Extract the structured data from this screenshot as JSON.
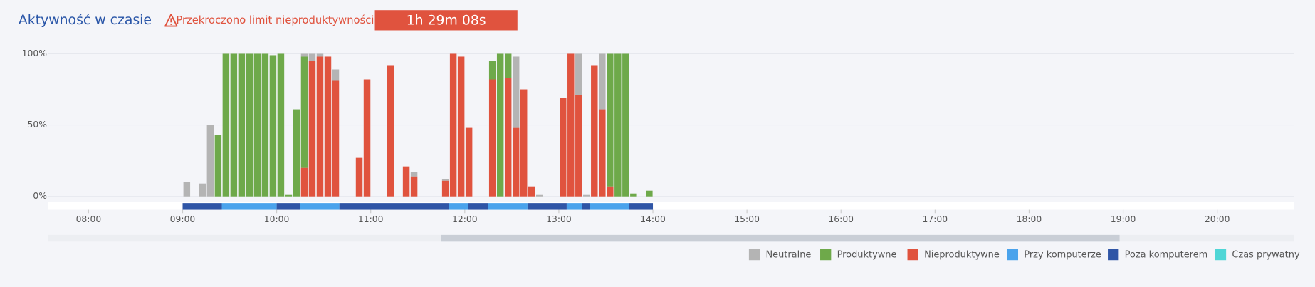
{
  "chart_data": {
    "type": "bar",
    "title": "Aktywność w czasie",
    "warning": "Przekroczono limit nieproduktywności!",
    "badge": "1h 29m 08s",
    "stacked": true,
    "bar_minutes": 5,
    "x": [
      540,
      550,
      555,
      560,
      565,
      570,
      575,
      580,
      585,
      590,
      595,
      600,
      605,
      610,
      615,
      620,
      625,
      630,
      635,
      650,
      655,
      670,
      680,
      685,
      705,
      710,
      715,
      720,
      735,
      740,
      745,
      750,
      755,
      760,
      765,
      780,
      785,
      790,
      795,
      800,
      805,
      810,
      815,
      820,
      825,
      835
    ],
    "series": [
      {
        "name": "Nieproduktywne",
        "color": "#e0533e",
        "values": [
          0,
          0,
          0,
          0,
          0,
          0,
          0,
          0,
          0,
          0,
          0,
          0,
          0,
          0,
          20,
          95,
          98,
          98,
          81,
          27,
          82,
          92,
          21,
          14,
          11,
          100,
          98,
          48,
          82,
          0,
          83,
          48,
          75,
          7,
          0,
          69,
          100,
          71,
          0,
          92,
          61,
          7,
          0,
          0,
          0,
          0
        ]
      },
      {
        "name": "Produktywne",
        "color": "#6ea94a",
        "values": [
          0,
          0,
          0,
          43,
          100,
          100,
          100,
          100,
          100,
          100,
          99,
          100,
          1,
          61,
          78,
          0,
          0,
          0,
          0,
          0,
          0,
          0,
          0,
          0,
          0,
          0,
          0,
          0,
          13,
          100,
          17,
          0,
          0,
          0,
          0,
          0,
          0,
          0,
          0,
          0,
          0,
          93,
          100,
          100,
          2,
          4
        ]
      },
      {
        "name": "Neutralne",
        "color": "#b4b4b4",
        "values": [
          10,
          9,
          50,
          0,
          0,
          0,
          0,
          0,
          0,
          0,
          0,
          0,
          0,
          0,
          2,
          5,
          2,
          0,
          8,
          0,
          0,
          0,
          0,
          3,
          1,
          0,
          0,
          0,
          0,
          0,
          0,
          50,
          0,
          0,
          1,
          0,
          0,
          29,
          1,
          0,
          39,
          0,
          0,
          0,
          0,
          0
        ]
      }
    ],
    "timeline": [
      {
        "name": "Przy komputerze",
        "color": "#4aa3ec",
        "ranges": [
          [
            565,
            600
          ],
          [
            615,
            640
          ],
          [
            710,
            722
          ],
          [
            735,
            760
          ],
          [
            785,
            795
          ],
          [
            800,
            825
          ]
        ]
      },
      {
        "name": "Poza komputerem",
        "color": "#2f55a6",
        "ranges": [
          [
            540,
            565
          ],
          [
            600,
            615
          ],
          [
            640,
            710
          ],
          [
            722,
            735
          ],
          [
            760,
            785
          ],
          [
            795,
            800
          ],
          [
            825,
            840
          ]
        ]
      },
      {
        "name": "Czas prywatny",
        "color": "#4fd6d6",
        "ranges": []
      }
    ],
    "xlim": [
      454,
      1249
    ],
    "xticks": [
      {
        "value": 480,
        "label": "08:00"
      },
      {
        "value": 540,
        "label": "09:00"
      },
      {
        "value": 600,
        "label": "10:00"
      },
      {
        "value": 660,
        "label": "11:00"
      },
      {
        "value": 720,
        "label": "12:00"
      },
      {
        "value": 780,
        "label": "13:00"
      },
      {
        "value": 840,
        "label": "14:00"
      },
      {
        "value": 900,
        "label": "15:00"
      },
      {
        "value": 960,
        "label": "16:00"
      },
      {
        "value": 1020,
        "label": "17:00"
      },
      {
        "value": 1080,
        "label": "18:00"
      },
      {
        "value": 1140,
        "label": "19:00"
      },
      {
        "value": 1200,
        "label": "20:00"
      }
    ],
    "ylim": [
      0,
      100
    ],
    "yticks": [
      {
        "value": 0,
        "label": "0%"
      },
      {
        "value": 50,
        "label": "50%"
      },
      {
        "value": 100,
        "label": "100%"
      }
    ],
    "grid": true
  }
}
